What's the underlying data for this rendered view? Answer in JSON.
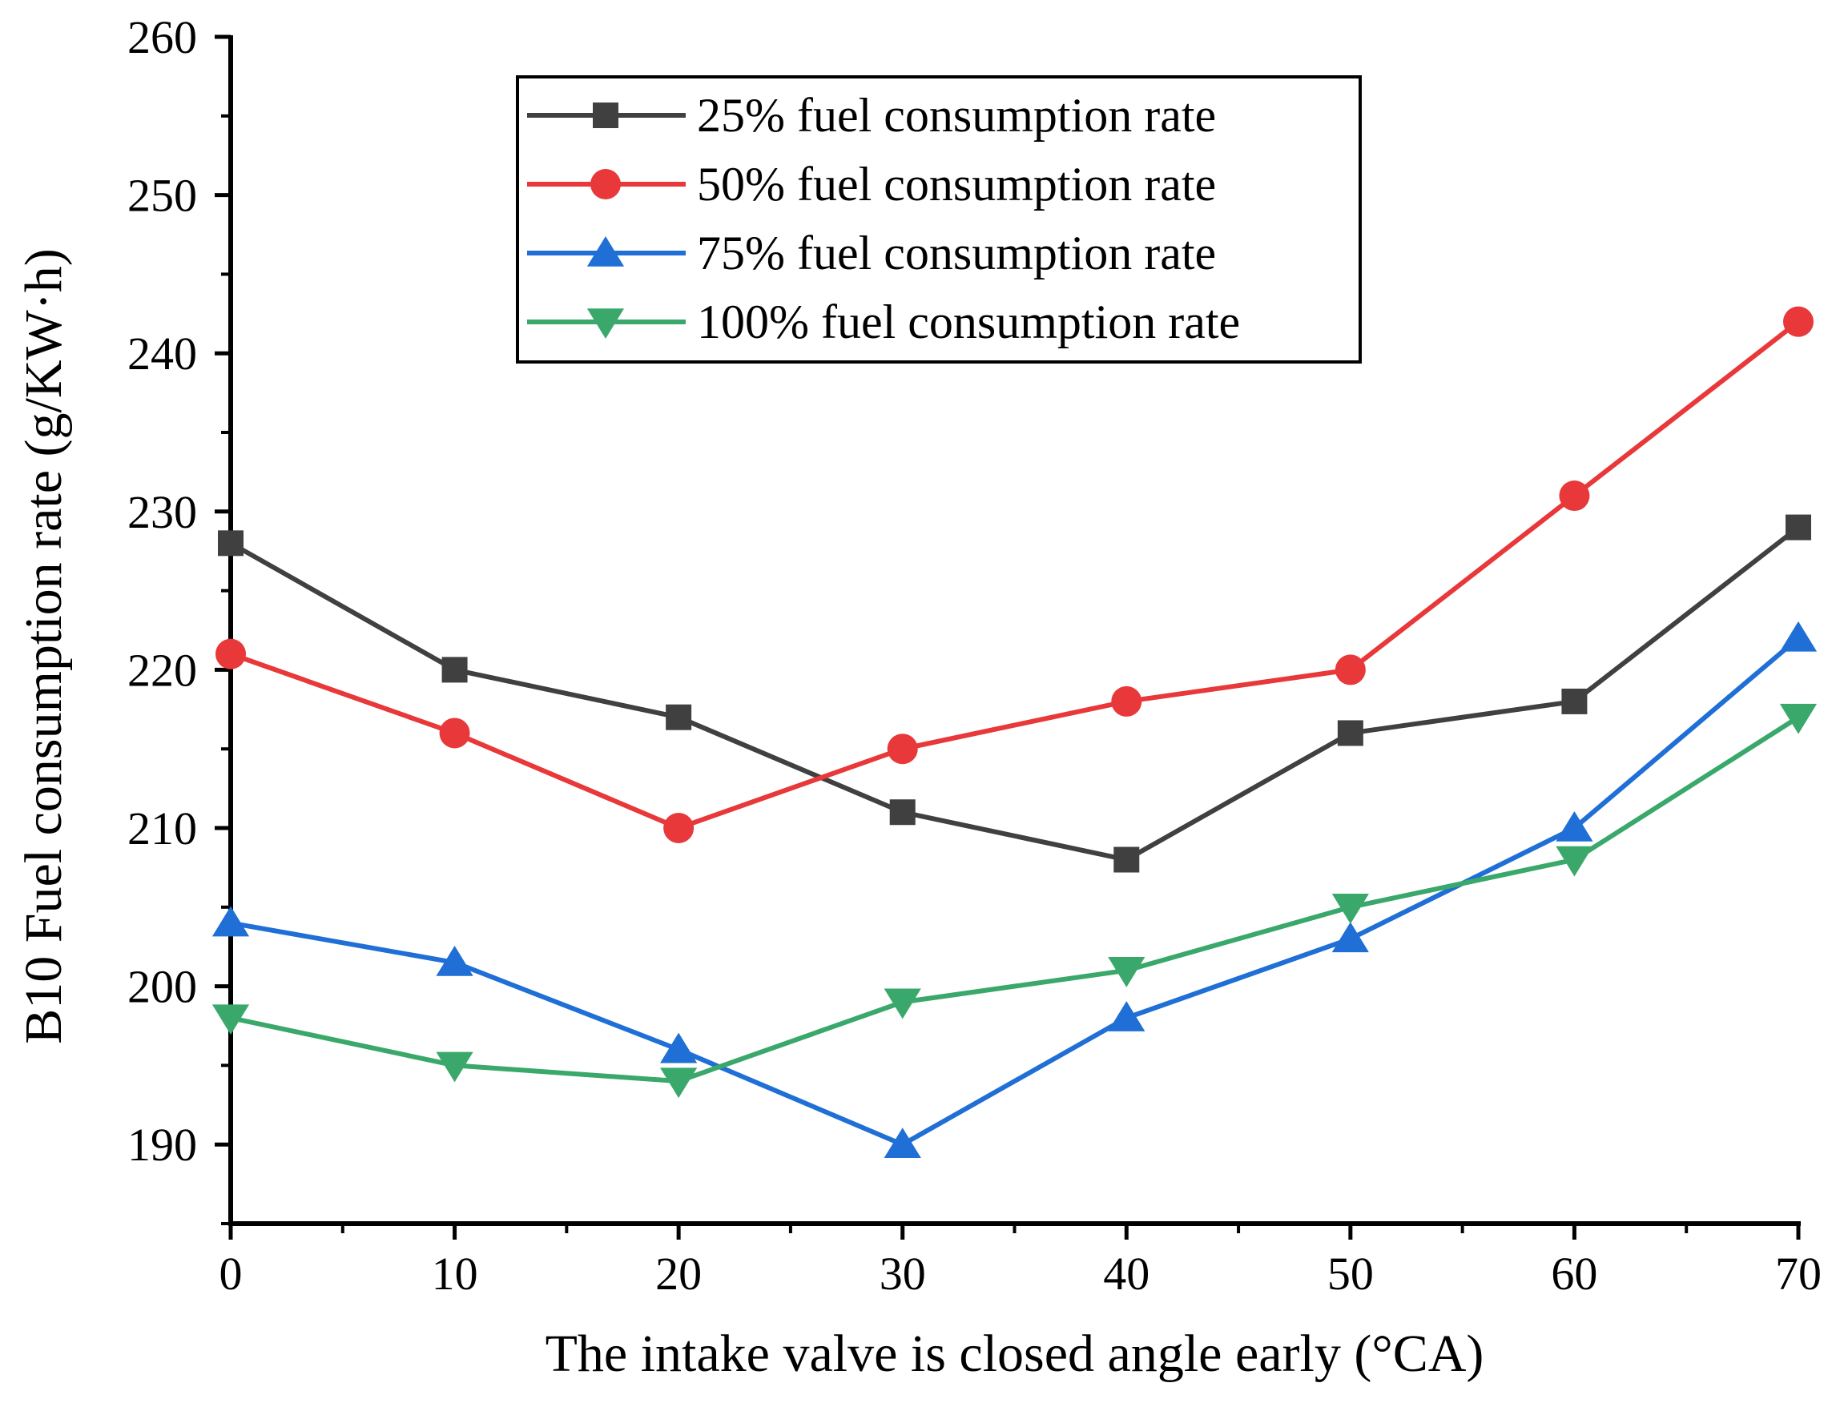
{
  "chart_data": {
    "type": "line",
    "title": "",
    "xlabel": "The intake valve is closed angle early (°CA)",
    "ylabel": "B10 Fuel consumption rate (g/KW·h)",
    "x": [
      0,
      10,
      20,
      30,
      40,
      50,
      60,
      70
    ],
    "xlim": [
      0,
      70
    ],
    "ylim": [
      185,
      260
    ],
    "xticks": [
      0,
      10,
      20,
      30,
      40,
      50,
      60,
      70
    ],
    "yticks": [
      190,
      200,
      210,
      220,
      230,
      240,
      250,
      260
    ],
    "grid": false,
    "legend_position": "top-center",
    "series": [
      {
        "name": "25% fuel consumption rate",
        "color": "#404040",
        "marker": "square",
        "values": [
          228,
          220,
          217,
          211,
          208,
          216,
          218,
          229
        ]
      },
      {
        "name": "50% fuel consumption rate",
        "color": "#e8383a",
        "marker": "circle",
        "values": [
          221,
          216,
          210,
          215,
          218,
          220,
          231,
          242
        ]
      },
      {
        "name": "75% fuel consumption rate",
        "color": "#1f6fd6",
        "marker": "triangle-up",
        "values": [
          204,
          201.5,
          196,
          190,
          198,
          203,
          210,
          222
        ]
      },
      {
        "name": "100% fuel consumption rate",
        "color": "#3aa86b",
        "marker": "triangle-down",
        "values": [
          198,
          195,
          194,
          199,
          201,
          205,
          208,
          217
        ]
      }
    ]
  }
}
